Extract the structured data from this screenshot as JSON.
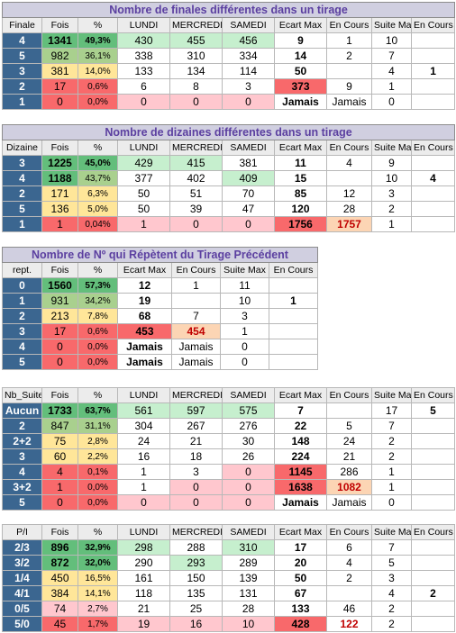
{
  "t1": {
    "title": "Nombre de finales différentes dans un tirage",
    "headers": [
      "Finale",
      "Fois",
      "%",
      "LUNDI",
      "MERCREDI",
      "SAMEDI",
      "Ecart Max",
      "En Cours",
      "Suite Max",
      "En Cours"
    ],
    "rows": [
      {
        "label": "4",
        "fois": "1341",
        "pct": "49,3%",
        "lundi": "430",
        "mercredi": "455",
        "samedi": "456",
        "ecart": "9",
        "encours": "1",
        "suite": "10",
        "encours2": ""
      },
      {
        "label": "5",
        "fois": "982",
        "pct": "36,1%",
        "lundi": "338",
        "mercredi": "310",
        "samedi": "334",
        "ecart": "14",
        "encours": "2",
        "suite": "7",
        "encours2": ""
      },
      {
        "label": "3",
        "fois": "381",
        "pct": "14,0%",
        "lundi": "133",
        "mercredi": "134",
        "samedi": "114",
        "ecart": "50",
        "encours": "",
        "suite": "4",
        "encours2": "1"
      },
      {
        "label": "2",
        "fois": "17",
        "pct": "0,6%",
        "lundi": "6",
        "mercredi": "8",
        "samedi": "3",
        "ecart": "373",
        "encours": "9",
        "suite": "1",
        "encours2": ""
      },
      {
        "label": "1",
        "fois": "0",
        "pct": "0,0%",
        "lundi": "0",
        "mercredi": "0",
        "samedi": "0",
        "ecart": "Jamais",
        "encours": "Jamais",
        "suite": "0",
        "encours2": ""
      }
    ]
  },
  "t2": {
    "title": "Nombre de dizaines différentes dans un tirage",
    "headers": [
      "Dizaine",
      "Fois",
      "%",
      "LUNDI",
      "MERCREDI",
      "SAMEDI",
      "Ecart Max",
      "En Cours",
      "Suite Max",
      "En Cours"
    ],
    "rows": [
      {
        "label": "3",
        "fois": "1225",
        "pct": "45,0%",
        "lundi": "429",
        "mercredi": "415",
        "samedi": "381",
        "ecart": "11",
        "encours": "4",
        "suite": "9",
        "encours2": ""
      },
      {
        "label": "4",
        "fois": "1188",
        "pct": "43,7%",
        "lundi": "377",
        "mercredi": "402",
        "samedi": "409",
        "ecart": "15",
        "encours": "",
        "suite": "10",
        "encours2": "4"
      },
      {
        "label": "2",
        "fois": "171",
        "pct": "6,3%",
        "lundi": "50",
        "mercredi": "51",
        "samedi": "70",
        "ecart": "85",
        "encours": "12",
        "suite": "3",
        "encours2": ""
      },
      {
        "label": "5",
        "fois": "136",
        "pct": "5,0%",
        "lundi": "50",
        "mercredi": "39",
        "samedi": "47",
        "ecart": "120",
        "encours": "28",
        "suite": "2",
        "encours2": ""
      },
      {
        "label": "1",
        "fois": "1",
        "pct": "0,04%",
        "lundi": "1",
        "mercredi": "0",
        "samedi": "0",
        "ecart": "1756",
        "encours": "1757",
        "suite": "1",
        "encours2": ""
      }
    ]
  },
  "t3": {
    "title": "Nombre de Nº qui Répètent du Tirage Précédent",
    "headers": [
      "rept.",
      "Fois",
      "%",
      "Ecart Max",
      "En Cours",
      "Suite Max",
      "En Cours"
    ],
    "rows": [
      {
        "label": "0",
        "fois": "1560",
        "pct": "57,3%",
        "ecart": "12",
        "encours": "1",
        "suite": "11",
        "encours2": ""
      },
      {
        "label": "1",
        "fois": "931",
        "pct": "34,2%",
        "ecart": "19",
        "encours": "",
        "suite": "10",
        "encours2": "1"
      },
      {
        "label": "2",
        "fois": "213",
        "pct": "7,8%",
        "ecart": "68",
        "encours": "7",
        "suite": "3",
        "encours2": ""
      },
      {
        "label": "3",
        "fois": "17",
        "pct": "0,6%",
        "ecart": "453",
        "encours": "454",
        "suite": "1",
        "encours2": ""
      },
      {
        "label": "4",
        "fois": "0",
        "pct": "0,0%",
        "ecart": "Jamais",
        "encours": "Jamais",
        "suite": "0",
        "encours2": ""
      },
      {
        "label": "5",
        "fois": "0",
        "pct": "0,0%",
        "ecart": "Jamais",
        "encours": "Jamais",
        "suite": "0",
        "encours2": ""
      }
    ]
  },
  "t4": {
    "headers": [
      "Nb_Suite",
      "Fois",
      "%",
      "LUNDI",
      "MERCREDI",
      "SAMEDI",
      "Ecart Max",
      "En Cours",
      "Suite Max",
      "En Cours"
    ],
    "rows": [
      {
        "label": "Aucun",
        "fois": "1733",
        "pct": "63,7%",
        "lundi": "561",
        "mercredi": "597",
        "samedi": "575",
        "ecart": "7",
        "encours": "",
        "suite": "17",
        "encours2": "5"
      },
      {
        "label": "2",
        "fois": "847",
        "pct": "31,1%",
        "lundi": "304",
        "mercredi": "267",
        "samedi": "276",
        "ecart": "22",
        "encours": "5",
        "suite": "7",
        "encours2": ""
      },
      {
        "label": "2+2",
        "fois": "75",
        "pct": "2,8%",
        "lundi": "24",
        "mercredi": "21",
        "samedi": "30",
        "ecart": "148",
        "encours": "24",
        "suite": "2",
        "encours2": ""
      },
      {
        "label": "3",
        "fois": "60",
        "pct": "2,2%",
        "lundi": "16",
        "mercredi": "18",
        "samedi": "26",
        "ecart": "224",
        "encours": "21",
        "suite": "2",
        "encours2": ""
      },
      {
        "label": "4",
        "fois": "4",
        "pct": "0,1%",
        "lundi": "1",
        "mercredi": "3",
        "samedi": "0",
        "ecart": "1145",
        "encours": "286",
        "suite": "1",
        "encours2": ""
      },
      {
        "label": "3+2",
        "fois": "1",
        "pct": "0,0%",
        "lundi": "1",
        "mercredi": "0",
        "samedi": "0",
        "ecart": "1638",
        "encours": "1082",
        "suite": "1",
        "encours2": ""
      },
      {
        "label": "5",
        "fois": "0",
        "pct": "0,0%",
        "lundi": "0",
        "mercredi": "0",
        "samedi": "0",
        "ecart": "Jamais",
        "encours": "Jamais",
        "suite": "0",
        "encours2": ""
      }
    ]
  },
  "t5": {
    "headers": [
      "P/I",
      "Fois",
      "%",
      "LUNDI",
      "MERCREDI",
      "SAMEDI",
      "Ecart Max",
      "En Cours",
      "Suite Max",
      "En Cours"
    ],
    "rows": [
      {
        "label": "2/3",
        "fois": "896",
        "pct": "32,9%",
        "lundi": "298",
        "mercredi": "288",
        "samedi": "310",
        "ecart": "17",
        "encours": "6",
        "suite": "7",
        "encours2": ""
      },
      {
        "label": "3/2",
        "fois": "872",
        "pct": "32,0%",
        "lundi": "290",
        "mercredi": "293",
        "samedi": "289",
        "ecart": "20",
        "encours": "4",
        "suite": "5",
        "encours2": ""
      },
      {
        "label": "1/4",
        "fois": "450",
        "pct": "16,5%",
        "lundi": "161",
        "mercredi": "150",
        "samedi": "139",
        "ecart": "50",
        "encours": "2",
        "suite": "3",
        "encours2": ""
      },
      {
        "label": "4/1",
        "fois": "384",
        "pct": "14,1%",
        "lundi": "118",
        "mercredi": "135",
        "samedi": "131",
        "ecart": "67",
        "encours": "",
        "suite": "4",
        "encours2": "2"
      },
      {
        "label": "0/5",
        "fois": "74",
        "pct": "2,7%",
        "lundi": "21",
        "mercredi": "25",
        "samedi": "28",
        "ecart": "133",
        "encours": "46",
        "suite": "2",
        "encours2": ""
      },
      {
        "label": "5/0",
        "fois": "45",
        "pct": "1,7%",
        "lundi": "19",
        "mercredi": "16",
        "samedi": "10",
        "ecart": "428",
        "encours": "122",
        "suite": "2",
        "encours2": ""
      }
    ]
  }
}
